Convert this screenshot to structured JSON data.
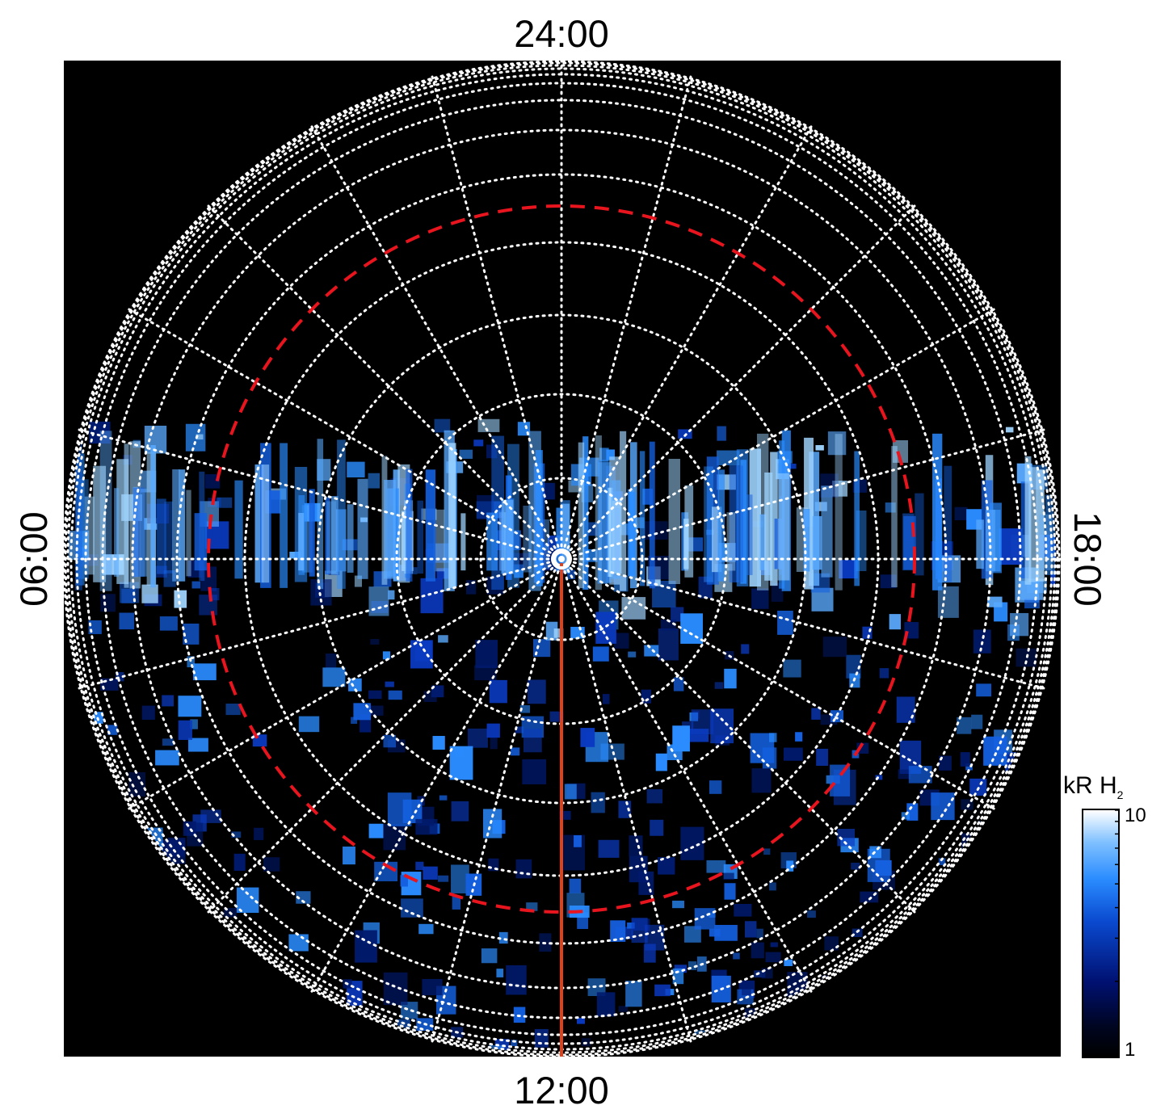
{
  "chart_data": {
    "type": "heatmap",
    "projection": "polar (local time vs. latitude)",
    "local_time_labels": {
      "top": "24:00",
      "bottom": "12:00",
      "left": "06:00",
      "right": "18:00"
    },
    "colorbar": {
      "title": "kR H",
      "title_subscript": "2",
      "min": 1,
      "max": 10,
      "min_label": "1",
      "max_label": "10",
      "scale": "log"
    },
    "grid": {
      "latitude_circles": 13,
      "longitude_meridians": 24,
      "style": "dotted",
      "color": "#ffffff"
    },
    "reference_circle_color": "#e8141e",
    "meridian_line_color": "#e0401a",
    "emission_color": "#2a8cff"
  }
}
